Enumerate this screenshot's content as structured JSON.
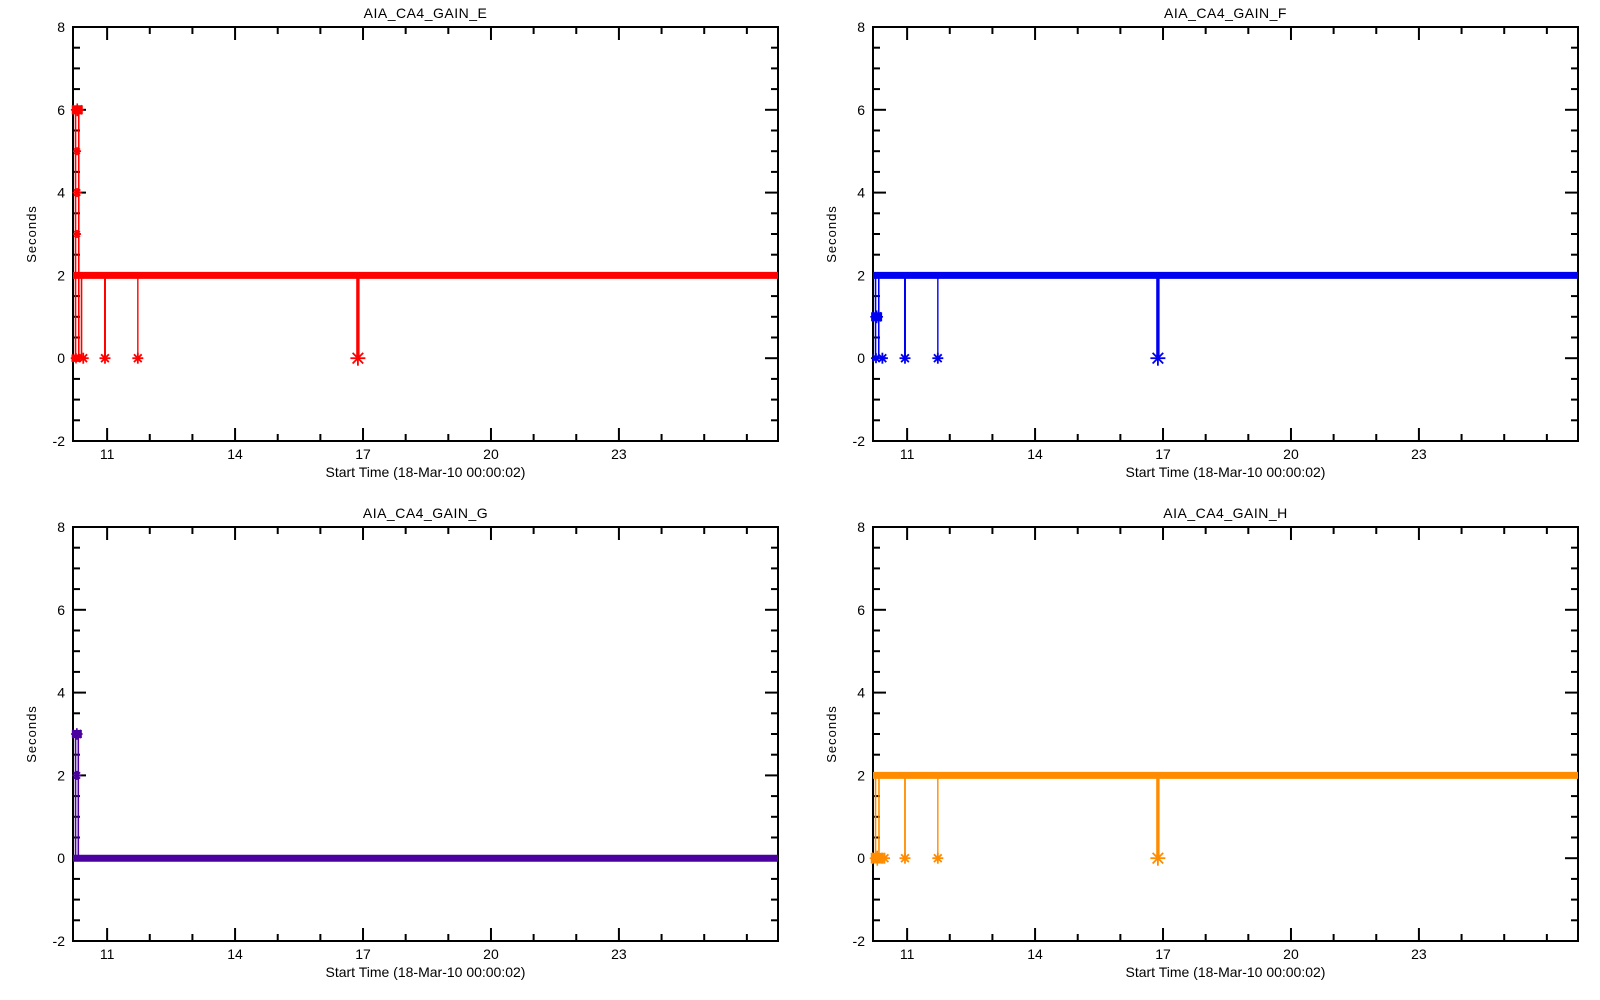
{
  "page": {
    "background": "#ffffff",
    "axis_color": "#000000",
    "description": "Four IDL-style telemetry time plots in a 2x2 grid"
  },
  "chart_data": [
    {
      "name": "gain-e",
      "type": "line",
      "title": "AIA_CA4_GAIN_E",
      "series_color": "#ff0000",
      "xlabel": "Start Time (18-Mar-10 00:00:02)",
      "ylabel": "Seconds",
      "xlim": [
        10.2,
        26.73
      ],
      "ylim": [
        -2,
        8
      ],
      "x_ticks": {
        "values": [
          11,
          14,
          17,
          20,
          23
        ],
        "labels": [
          "11",
          "14",
          "17",
          "20",
          "23"
        ]
      },
      "x_minor_ticks": [
        12,
        13,
        15,
        16,
        18,
        19,
        21,
        22,
        24,
        25,
        26
      ],
      "y_ticks": {
        "values": [
          -2,
          0,
          2,
          4,
          6,
          8
        ],
        "labels": [
          "-2",
          "0",
          "2",
          "4",
          "6",
          "8"
        ]
      },
      "y_minor_ticks": [
        -1.5,
        -1,
        -0.5,
        0.5,
        1,
        1.5,
        2.5,
        3,
        3.5,
        4.5,
        5,
        5.5,
        6.5,
        7,
        7.5
      ],
      "baseline": {
        "y": 2,
        "line_width": 7
      },
      "vlines": [
        {
          "x": 10.26,
          "y_from": 0,
          "y_to": 6,
          "line_width": 1.6
        },
        {
          "x": 10.335,
          "y_from": 0,
          "y_to": 6,
          "line_width": 1.6
        },
        {
          "x": 10.4,
          "y_from": 0,
          "y_to": 2,
          "line_width": 1.6
        },
        {
          "x": 10.95,
          "y_from": 0,
          "y_to": 2,
          "line_width": 2
        },
        {
          "x": 11.72,
          "y_from": 0,
          "y_to": 2,
          "line_width": 1.4
        },
        {
          "x": 16.88,
          "y_from": 0,
          "y_to": 2,
          "line_width": 3.4
        }
      ],
      "markers": [
        {
          "x": 10.3,
          "y": 6,
          "kind": "blob",
          "size": 11
        },
        {
          "x": 10.295,
          "y": 5,
          "kind": "asterisk",
          "size": 8
        },
        {
          "x": 10.295,
          "y": 4,
          "kind": "asterisk",
          "size": 9
        },
        {
          "x": 10.295,
          "y": 3,
          "kind": "asterisk",
          "size": 8
        },
        {
          "x": 10.27,
          "y": 0,
          "kind": "blob",
          "size": 9
        },
        {
          "x": 10.44,
          "y": 0,
          "kind": "asterisk",
          "size": 11
        },
        {
          "x": 10.95,
          "y": 0,
          "kind": "asterisk",
          "size": 11
        },
        {
          "x": 11.72,
          "y": 0,
          "kind": "asterisk",
          "size": 11
        },
        {
          "x": 16.88,
          "y": 0,
          "kind": "asterisk",
          "size": 15
        }
      ]
    },
    {
      "name": "gain-f",
      "type": "line",
      "title": "AIA_CA4_GAIN_F",
      "series_color": "#0000f0",
      "xlabel": "Start Time (18-Mar-10 00:00:02)",
      "ylabel": "Seconds",
      "xlim": [
        10.2,
        26.73
      ],
      "ylim": [
        -2,
        8
      ],
      "x_ticks": {
        "values": [
          11,
          14,
          17,
          20,
          23
        ],
        "labels": [
          "11",
          "14",
          "17",
          "20",
          "23"
        ]
      },
      "x_minor_ticks": [
        12,
        13,
        15,
        16,
        18,
        19,
        21,
        22,
        24,
        25,
        26
      ],
      "y_ticks": {
        "values": [
          -2,
          0,
          2,
          4,
          6,
          8
        ],
        "labels": [
          "-2",
          "0",
          "2",
          "4",
          "6",
          "8"
        ]
      },
      "y_minor_ticks": [
        -1.5,
        -1,
        -0.5,
        0.5,
        1,
        1.5,
        2.5,
        3,
        3.5,
        4.5,
        5,
        5.5,
        6.5,
        7,
        7.5
      ],
      "baseline": {
        "y": 2,
        "line_width": 7
      },
      "vlines": [
        {
          "x": 10.26,
          "y_from": 0,
          "y_to": 2,
          "line_width": 1.6
        },
        {
          "x": 10.335,
          "y_from": 0,
          "y_to": 2,
          "line_width": 1.6
        },
        {
          "x": 10.95,
          "y_from": 0,
          "y_to": 2,
          "line_width": 2
        },
        {
          "x": 11.72,
          "y_from": 0,
          "y_to": 2,
          "line_width": 1.4
        },
        {
          "x": 16.88,
          "y_from": 0,
          "y_to": 2,
          "line_width": 3.4
        }
      ],
      "markers": [
        {
          "x": 10.285,
          "y": 1,
          "kind": "blob",
          "size": 11
        },
        {
          "x": 10.27,
          "y": 0,
          "kind": "asterisk",
          "size": 10
        },
        {
          "x": 10.42,
          "y": 0,
          "kind": "asterisk",
          "size": 11
        },
        {
          "x": 10.95,
          "y": 0,
          "kind": "asterisk",
          "size": 11
        },
        {
          "x": 11.72,
          "y": 0,
          "kind": "asterisk",
          "size": 11
        },
        {
          "x": 16.88,
          "y": 0,
          "kind": "asterisk",
          "size": 15
        }
      ]
    },
    {
      "name": "gain-g",
      "type": "line",
      "title": "AIA_CA4_GAIN_G",
      "series_color": "#4b00a0",
      "xlabel": "Start Time (18-Mar-10 00:00:02)",
      "ylabel": "Seconds",
      "xlim": [
        10.2,
        26.73
      ],
      "ylim": [
        -2,
        8
      ],
      "x_ticks": {
        "values": [
          11,
          14,
          17,
          20,
          23
        ],
        "labels": [
          "11",
          "14",
          "17",
          "20",
          "23"
        ]
      },
      "x_minor_ticks": [
        12,
        13,
        15,
        16,
        18,
        19,
        21,
        22,
        24,
        25,
        26
      ],
      "y_ticks": {
        "values": [
          -2,
          0,
          2,
          4,
          6,
          8
        ],
        "labels": [
          "-2",
          "0",
          "2",
          "4",
          "6",
          "8"
        ]
      },
      "y_minor_ticks": [
        -1.5,
        -1,
        -0.5,
        0.5,
        1,
        1.5,
        2.5,
        3,
        3.5,
        4.5,
        5,
        5.5,
        6.5,
        7,
        7.5
      ],
      "baseline": {
        "y": 0,
        "line_width": 7
      },
      "vlines": [
        {
          "x": 10.26,
          "y_from": 0,
          "y_to": 3,
          "line_width": 1.6
        },
        {
          "x": 10.325,
          "y_from": 0,
          "y_to": 3,
          "line_width": 1.6
        }
      ],
      "markers": [
        {
          "x": 10.29,
          "y": 3,
          "kind": "blob",
          "size": 10
        },
        {
          "x": 10.29,
          "y": 2,
          "kind": "asterisk",
          "size": 9
        }
      ]
    },
    {
      "name": "gain-h",
      "type": "line",
      "title": "AIA_CA4_GAIN_H",
      "series_color": "#ff8c00",
      "xlabel": "Start Time (18-Mar-10 00:00:02)",
      "ylabel": "Seconds",
      "xlim": [
        10.2,
        26.73
      ],
      "ylim": [
        -2,
        8
      ],
      "x_ticks": {
        "values": [
          11,
          14,
          17,
          20,
          23
        ],
        "labels": [
          "11",
          "14",
          "17",
          "20",
          "23"
        ]
      },
      "x_minor_ticks": [
        12,
        13,
        15,
        16,
        18,
        19,
        21,
        22,
        24,
        25,
        26
      ],
      "y_ticks": {
        "values": [
          -2,
          0,
          2,
          4,
          6,
          8
        ],
        "labels": [
          "-2",
          "0",
          "2",
          "4",
          "6",
          "8"
        ]
      },
      "y_minor_ticks": [
        -1.5,
        -1,
        -0.5,
        0.5,
        1,
        1.5,
        2.5,
        3,
        3.5,
        4.5,
        5,
        5.5,
        6.5,
        7,
        7.5
      ],
      "baseline": {
        "y": 2,
        "line_width": 7
      },
      "vlines": [
        {
          "x": 10.26,
          "y_from": 0,
          "y_to": 2,
          "line_width": 1.6
        },
        {
          "x": 10.34,
          "y_from": 0,
          "y_to": 2,
          "line_width": 1.6
        },
        {
          "x": 10.95,
          "y_from": 0,
          "y_to": 2,
          "line_width": 1.8
        },
        {
          "x": 11.72,
          "y_from": 0,
          "y_to": 2,
          "line_width": 1.4
        },
        {
          "x": 16.88,
          "y_from": 0,
          "y_to": 2,
          "line_width": 3.4
        }
      ],
      "markers": [
        {
          "x": 10.3,
          "y": 0,
          "kind": "blob",
          "size": 13
        },
        {
          "x": 10.47,
          "y": 0,
          "kind": "asterisk",
          "size": 11
        },
        {
          "x": 10.95,
          "y": 0,
          "kind": "asterisk",
          "size": 11
        },
        {
          "x": 11.72,
          "y": 0,
          "kind": "asterisk",
          "size": 11
        },
        {
          "x": 16.88,
          "y": 0,
          "kind": "asterisk",
          "size": 15
        }
      ]
    }
  ]
}
